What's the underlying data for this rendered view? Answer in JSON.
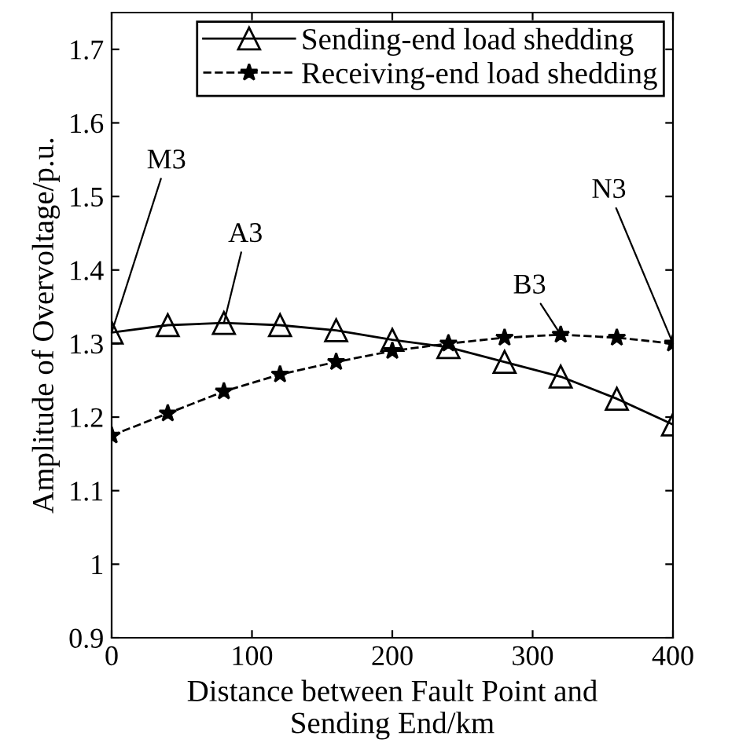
{
  "chart_data": {
    "type": "line",
    "xlabel": "Distance between Fault Point and\nSending End/km",
    "ylabel": "Amplitude of Overvoltage/p.u.",
    "x": [
      0,
      40,
      80,
      120,
      160,
      200,
      240,
      280,
      320,
      360,
      400
    ],
    "series": [
      {
        "name": "Sending-end load shedding",
        "color": "#000000",
        "marker": "triangle",
        "line_style": "solid",
        "values": [
          1.315,
          1.325,
          1.328,
          1.325,
          1.318,
          1.305,
          1.295,
          1.275,
          1.255,
          1.225,
          1.19
        ]
      },
      {
        "name": "Receiving-end load shedding",
        "color": "#000000",
        "marker": "star",
        "line_style": "dashed",
        "values": [
          1.175,
          1.205,
          1.235,
          1.258,
          1.275,
          1.29,
          1.3,
          1.308,
          1.312,
          1.308,
          1.3
        ]
      }
    ],
    "annotations": [
      {
        "text": "M3",
        "x": 0,
        "y": 1.315
      },
      {
        "text": "A3",
        "x": 80,
        "y": 1.328
      },
      {
        "text": "B3",
        "x": 320,
        "y": 1.312
      },
      {
        "text": "N3",
        "x": 400,
        "y": 1.3
      }
    ],
    "xlim": [
      0,
      400
    ],
    "ylim": [
      0.9,
      1.75
    ],
    "xticks": [
      0,
      100,
      200,
      300,
      400
    ],
    "yticks": [
      0.9,
      1,
      1.1,
      1.2,
      1.3,
      1.4,
      1.5,
      1.6,
      1.7
    ],
    "grid": false,
    "legend": "top right"
  }
}
